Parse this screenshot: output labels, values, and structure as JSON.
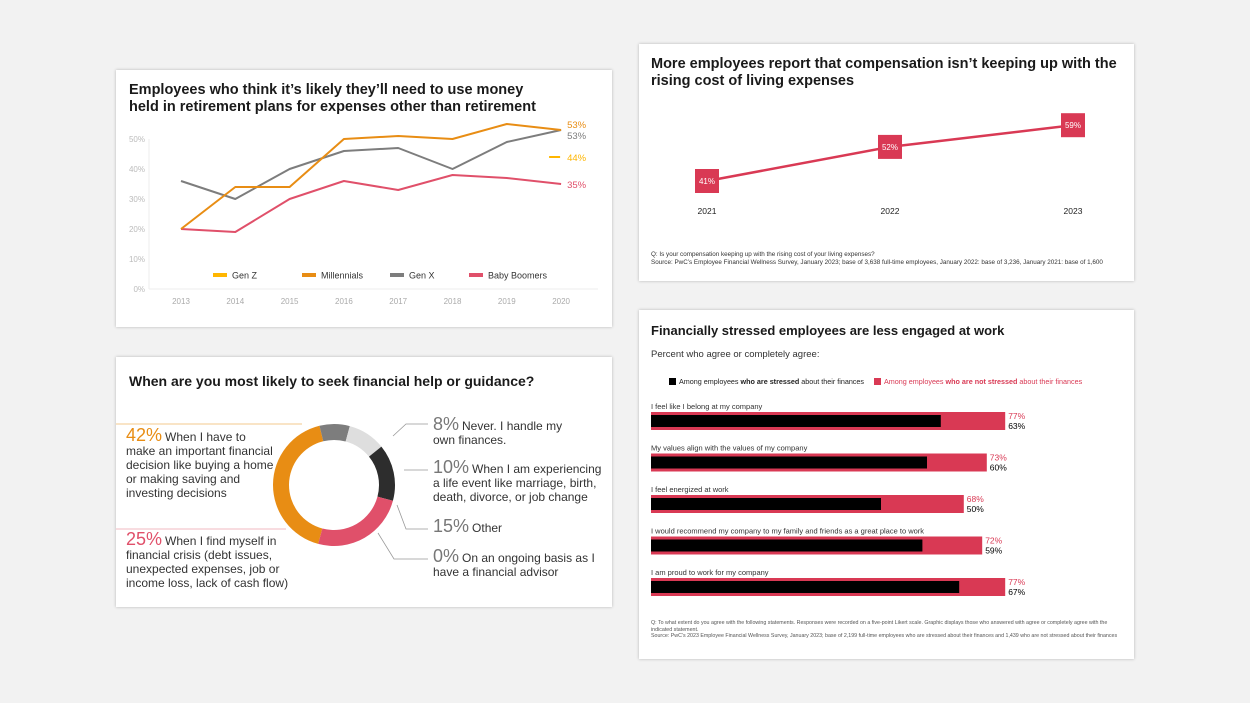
{
  "colors": {
    "background": "#F2F2F2",
    "gen_z": "#FFB600",
    "millennials": "#E88D14",
    "gen_x": "#7D7D7D",
    "baby_boomers": "#E0506A",
    "red": "#D93954",
    "dark": "#2D2D2D",
    "light_grey": "#DEDEDE",
    "black": "#000000"
  },
  "chart_data": [
    {
      "id": "retirement-money",
      "type": "line",
      "title": "Employees who think it’s likely they’ll need to use money held in retirement plans for expenses other than retirement",
      "x": [
        "2013",
        "2014",
        "2015",
        "2016",
        "2017",
        "2018",
        "2019",
        "2020"
      ],
      "yticks": [
        "0%",
        "10%",
        "20%",
        "30%",
        "40%",
        "50%"
      ],
      "ylim": [
        0,
        50
      ],
      "xlabel": "",
      "ylabel": "",
      "legend_position": "bottom",
      "series": [
        {
          "name": "Gen Z",
          "color_key": "gen_z",
          "values": [
            null,
            null,
            null,
            null,
            null,
            null,
            null,
            44
          ],
          "end_label": "44%"
        },
        {
          "name": "Millennials",
          "color_key": "millennials",
          "values": [
            20,
            34,
            34,
            50,
            51,
            50,
            55,
            53
          ],
          "end_label": "53%"
        },
        {
          "name": "Gen X",
          "color_key": "gen_x",
          "values": [
            36,
            30,
            40,
            46,
            47,
            40,
            49,
            53
          ],
          "end_label": "53%"
        },
        {
          "name": "Baby Boomers",
          "color_key": "baby_boomers",
          "values": [
            20,
            19,
            30,
            36,
            33,
            38,
            37,
            35
          ],
          "end_label": "35%"
        }
      ]
    },
    {
      "id": "compensation",
      "type": "line",
      "title": "More employees report that compensation isn’t keeping up with the rising cost of living expenses",
      "x": [
        "2021",
        "2022",
        "2023"
      ],
      "values": [
        41,
        52,
        59
      ],
      "labels": [
        "41%",
        "52%",
        "59%"
      ],
      "note_question": "Q: Is your compensation keeping up with the rising cost of your living expenses?",
      "note_source": "Source: PwC’s Employee Financial Wellness Survey, January 2023; base of 3,638 full-time employees, January 2022: base of 3,236, January 2021: base of 1,600"
    },
    {
      "id": "financial-help",
      "type": "pie",
      "title": "When are you most likely to seek financial help or guidance?",
      "slices": [
        {
          "pct_label": "42%",
          "value": 42,
          "color_key": "millennials",
          "text": "When I have to make an important financial decision like buying a home or making saving and investing decisions"
        },
        {
          "pct_label": "8%",
          "value": 8,
          "color_key": "gen_x",
          "text": "Never. I handle my own finances."
        },
        {
          "pct_label": "10%",
          "value": 10,
          "color_key": "light_grey",
          "text": "When I am experiencing a life event like marriage, birth, death, divorce, or job change"
        },
        {
          "pct_label": "15%",
          "value": 15,
          "color_key": "dark",
          "text": "Other"
        },
        {
          "pct_label": "0%",
          "value": 0,
          "color_key": "dark",
          "text": "On an ongoing basis as I have a financial advisor"
        },
        {
          "pct_label": "25%",
          "value": 25,
          "color_key": "baby_boomers",
          "text": "When I find myself in financial crisis (debt issues, unexpected expenses, job or income loss, lack of cash flow)"
        }
      ]
    },
    {
      "id": "engagement",
      "type": "bar",
      "title": "Financially stressed employees are less engaged at work",
      "subtitle": "Percent who agree or completely agree:",
      "legend": {
        "stressed": {
          "pre": "Among employees ",
          "bold": "who are stressed",
          "post": " about their finances"
        },
        "not_stressed": {
          "pre": "Among employees ",
          "bold": "who are not stressed",
          "post": " about their finances"
        }
      },
      "categories": [
        "I feel like I belong at my company",
        "My values align with the values of my company",
        "I feel energized at work",
        "I would recommend my company to my family and friends as a great place to work",
        "I am proud to work for my company"
      ],
      "series": [
        {
          "name": "Not stressed",
          "color_key": "red",
          "values": [
            77,
            73,
            68,
            72,
            77
          ]
        },
        {
          "name": "Stressed",
          "color_key": "black",
          "values": [
            63,
            60,
            50,
            59,
            67
          ]
        }
      ],
      "note_question": "Q: To what extent do you agree with the following statements. Responses were recorded on a five-point Likert scale. Graphic displays those who answered with agree or completely agree with the indicated statement.",
      "note_source": "Source: PwC’s 2023 Employee Financial Wellness Survey, January 2023; base of 2,199 full-time employees who are stressed about their finances and 1,439 who are not stressed about their finances"
    }
  ]
}
